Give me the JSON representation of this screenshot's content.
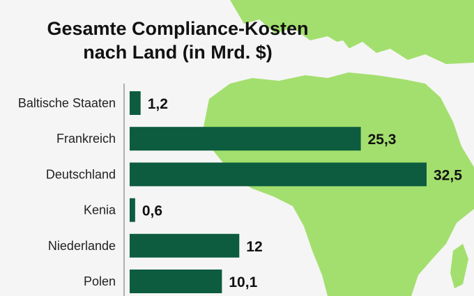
{
  "chart_data": {
    "type": "bar",
    "orientation": "horizontal",
    "title_lines": [
      "Gesamte Compliance-Kosten",
      "nach Land (in Mrd. $)"
    ],
    "categories": [
      "Baltische Staaten",
      "Frankreich",
      "Deutschland",
      "Kenia",
      "Niederlande",
      "Polen"
    ],
    "values": [
      1.2,
      25.3,
      32.5,
      0.6,
      12,
      10.1
    ],
    "value_labels": [
      "1,2",
      "25,3",
      "32,5",
      "0,6",
      "12",
      "10,1"
    ],
    "xlim": [
      0,
      32.5
    ],
    "grid": false,
    "legend": "none",
    "colors": {
      "bar": "#0d5c3f",
      "map": "#a3df6e",
      "background": "#f5f5f5",
      "axis": "#999999"
    }
  }
}
